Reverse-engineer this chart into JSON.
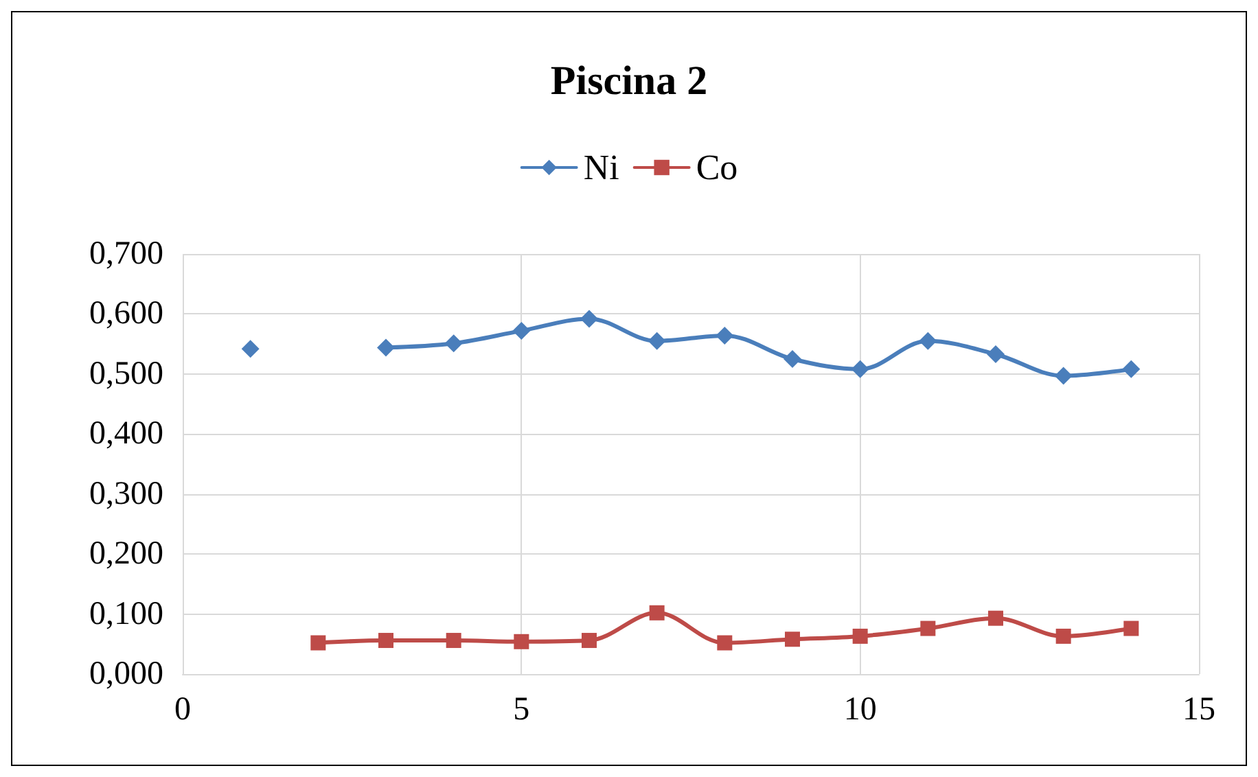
{
  "chart_data": {
    "type": "line",
    "title": "Piscina 2",
    "x": [
      1,
      2,
      3,
      4,
      5,
      6,
      7,
      8,
      9,
      10,
      11,
      12,
      13,
      14
    ],
    "series": [
      {
        "name": "Ni",
        "color": "#4a7ebb",
        "marker": "diamond",
        "values": [
          0.542,
          null,
          0.544,
          0.551,
          0.572,
          0.592,
          0.555,
          0.564,
          0.525,
          0.508,
          0.555,
          0.533,
          0.497,
          0.508
        ]
      },
      {
        "name": "Co",
        "color": "#be4b48",
        "marker": "square",
        "values": [
          null,
          0.052,
          0.056,
          0.056,
          0.054,
          0.056,
          0.102,
          0.052,
          0.058,
          0.063,
          0.076,
          0.093,
          0.063,
          0.076
        ]
      }
    ],
    "xlim": [
      0,
      15
    ],
    "xticks": [
      0,
      5,
      10,
      15
    ],
    "ylim": [
      0,
      0.7
    ],
    "yticks": [
      {
        "value": 0,
        "label": "0,000"
      },
      {
        "value": 0.1,
        "label": "0,100"
      },
      {
        "value": 0.2,
        "label": "0,200"
      },
      {
        "value": 0.3,
        "label": "0,300"
      },
      {
        "value": 0.4,
        "label": "0,400"
      },
      {
        "value": 0.5,
        "label": "0,500"
      },
      {
        "value": 0.6,
        "label": "0,600"
      },
      {
        "value": 0.7,
        "label": "0,700"
      }
    ],
    "grid": true,
    "legend": "top",
    "line_style": "solid"
  }
}
